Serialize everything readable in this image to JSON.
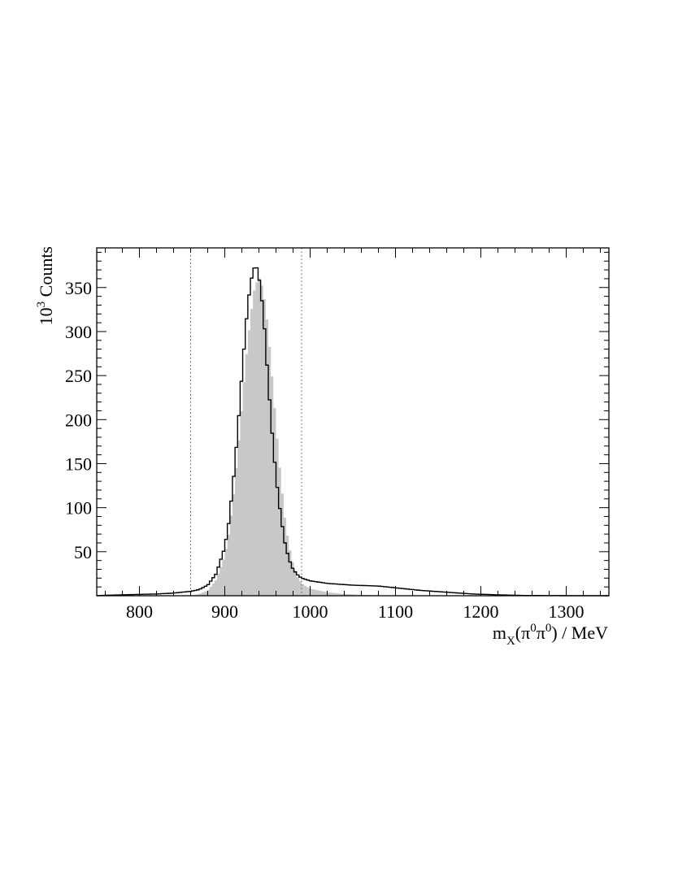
{
  "chart_data": {
    "type": "histogram",
    "x_axis": {
      "label": "m",
      "label_subscript": "X",
      "label_rest": "(π",
      "label_sup1": "0",
      "label_mid": "π",
      "label_sup2": "0",
      "label_end": ") / MeV",
      "range": [
        750,
        1350
      ],
      "ticks": [
        800,
        900,
        1000,
        1100,
        1200,
        1300
      ],
      "tick_labels": [
        "800",
        "900",
        "1000",
        "1100",
        "1200",
        "1300"
      ]
    },
    "y_axis": {
      "label_base": "10",
      "label_exp": "3",
      "label_rest": " Counts",
      "range": [
        0,
        395
      ],
      "ticks": [
        50,
        100,
        150,
        200,
        250,
        300,
        350
      ],
      "tick_labels": [
        "50",
        "100",
        "150",
        "200",
        "250",
        "300",
        "350"
      ]
    },
    "cut_lines": [
      860,
      990
    ],
    "series": [
      {
        "style": "outline",
        "color": "#000000",
        "bin_width": 3,
        "points": [
          [
            750,
            0
          ],
          [
            760,
            0.5
          ],
          [
            780,
            1
          ],
          [
            800,
            1.5
          ],
          [
            820,
            2
          ],
          [
            840,
            3
          ],
          [
            850,
            4
          ],
          [
            860,
            5
          ],
          [
            870,
            7
          ],
          [
            880,
            12
          ],
          [
            890,
            25
          ],
          [
            900,
            55
          ],
          [
            905,
            85
          ],
          [
            910,
            130
          ],
          [
            915,
            185
          ],
          [
            920,
            250
          ],
          [
            925,
            310
          ],
          [
            930,
            355
          ],
          [
            935,
            374
          ],
          [
            938,
            372
          ],
          [
            942,
            350
          ],
          [
            946,
            310
          ],
          [
            950,
            255
          ],
          [
            955,
            190
          ],
          [
            960,
            135
          ],
          [
            965,
            95
          ],
          [
            970,
            62
          ],
          [
            975,
            42
          ],
          [
            980,
            30
          ],
          [
            985,
            24
          ],
          [
            990,
            20
          ],
          [
            1000,
            17
          ],
          [
            1020,
            14
          ],
          [
            1050,
            12
          ],
          [
            1080,
            11
          ],
          [
            1100,
            9
          ],
          [
            1130,
            6
          ],
          [
            1160,
            4
          ],
          [
            1190,
            2
          ],
          [
            1220,
            1
          ],
          [
            1250,
            0.3
          ],
          [
            1300,
            0.1
          ],
          [
            1350,
            0
          ]
        ]
      },
      {
        "style": "filled",
        "color": "#c8c8c8",
        "bin_width": 3,
        "points": [
          [
            750,
            0
          ],
          [
            860,
            0
          ],
          [
            870,
            2
          ],
          [
            880,
            6
          ],
          [
            890,
            18
          ],
          [
            900,
            45
          ],
          [
            905,
            72
          ],
          [
            910,
            110
          ],
          [
            915,
            160
          ],
          [
            920,
            215
          ],
          [
            925,
            270
          ],
          [
            930,
            315
          ],
          [
            935,
            350
          ],
          [
            940,
            362
          ],
          [
            945,
            348
          ],
          [
            950,
            310
          ],
          [
            955,
            255
          ],
          [
            960,
            195
          ],
          [
            965,
            140
          ],
          [
            970,
            92
          ],
          [
            975,
            58
          ],
          [
            980,
            36
          ],
          [
            985,
            22
          ],
          [
            990,
            14
          ],
          [
            1000,
            8
          ],
          [
            1020,
            4
          ],
          [
            1040,
            2
          ],
          [
            1060,
            1
          ],
          [
            1080,
            0.5
          ],
          [
            1100,
            0.3
          ],
          [
            1150,
            0
          ],
          [
            1350,
            0
          ]
        ]
      }
    ]
  }
}
